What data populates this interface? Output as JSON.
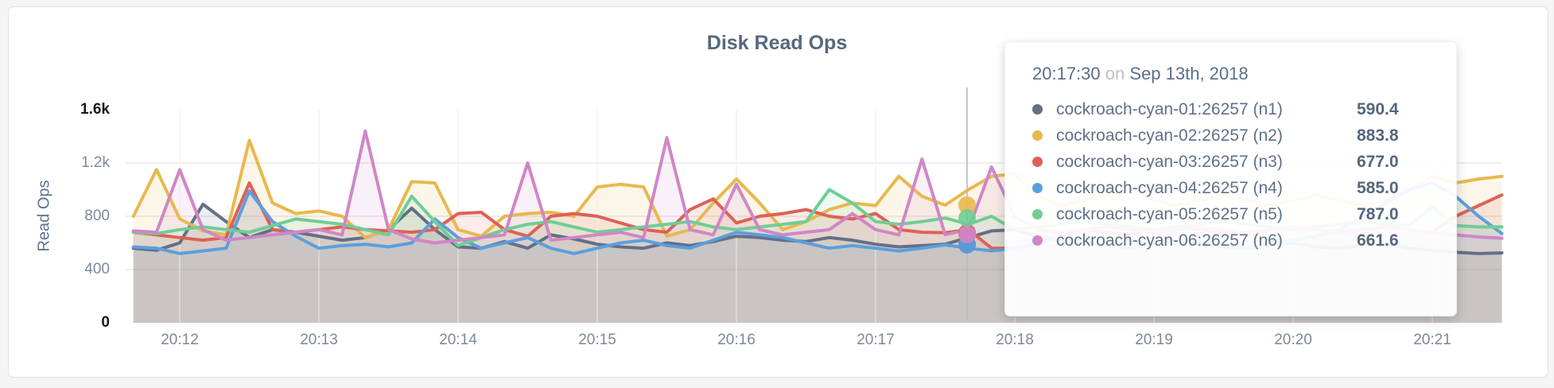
{
  "page": {
    "background": "#f4f4f5",
    "card_background": "#ffffff",
    "card_border": "#e2e2e3"
  },
  "chart_data": {
    "type": "line",
    "title": "Disk Read Ops",
    "ylabel": "Read Ops",
    "xlabel": "",
    "ylim": [
      0,
      1600
    ],
    "grid": true,
    "legend_position": "tooltip-only",
    "y_ticks": [
      {
        "value": 0,
        "label": "0",
        "emphasis": true,
        "gridline": false
      },
      {
        "value": 400,
        "label": "400",
        "emphasis": false,
        "gridline": true
      },
      {
        "value": 800,
        "label": "800",
        "emphasis": false,
        "gridline": true
      },
      {
        "value": 1200,
        "label": "1.2k",
        "emphasis": false,
        "gridline": true
      },
      {
        "value": 1600,
        "label": "1.6k",
        "emphasis": true,
        "gridline": false
      }
    ],
    "x_ticks": [
      "20:12",
      "20:13",
      "20:14",
      "20:15",
      "20:16",
      "20:17",
      "20:18",
      "20:19",
      "20:20",
      "20:21"
    ],
    "x": [
      "20:11:40",
      "20:11:50",
      "20:12:00",
      "20:12:10",
      "20:12:20",
      "20:12:30",
      "20:12:40",
      "20:12:50",
      "20:13:00",
      "20:13:10",
      "20:13:20",
      "20:13:30",
      "20:13:40",
      "20:13:50",
      "20:14:00",
      "20:14:10",
      "20:14:20",
      "20:14:30",
      "20:14:40",
      "20:14:50",
      "20:15:00",
      "20:15:10",
      "20:15:20",
      "20:15:30",
      "20:15:40",
      "20:15:50",
      "20:16:00",
      "20:16:10",
      "20:16:20",
      "20:16:30",
      "20:16:40",
      "20:16:50",
      "20:17:00",
      "20:17:10",
      "20:17:20",
      "20:17:30",
      "20:17:40",
      "20:17:50",
      "20:18:00",
      "20:18:10",
      "20:18:20",
      "20:18:30",
      "20:18:40",
      "20:18:50",
      "20:19:00",
      "20:19:10",
      "20:19:20",
      "20:19:30",
      "20:19:40",
      "20:19:50",
      "20:20:00",
      "20:20:10",
      "20:20:20",
      "20:20:30",
      "20:20:40",
      "20:20:50",
      "20:21:00",
      "20:21:10",
      "20:21:20",
      "20:21:30"
    ],
    "series": [
      {
        "name": "cockroach-cyan-01:26257 (n1)",
        "color": "#646f86",
        "values": [
          560,
          545,
          600,
          890,
          760,
          640,
          700,
          680,
          650,
          620,
          640,
          700,
          860,
          700,
          570,
          560,
          610,
          560,
          660,
          630,
          590,
          570,
          560,
          600,
          580,
          610,
          650,
          640,
          620,
          610,
          640,
          620,
          590,
          570,
          580,
          590.4,
          640,
          690,
          700,
          650,
          620,
          600,
          580,
          560,
          600,
          620,
          590,
          570,
          560,
          580,
          600,
          570,
          560,
          580,
          590,
          560,
          545,
          530,
          520,
          525
        ]
      },
      {
        "name": "cockroach-cyan-02:26257 (n2)",
        "color": "#e8b84e",
        "values": [
          800,
          1150,
          780,
          690,
          660,
          1370,
          900,
          820,
          840,
          800,
          640,
          700,
          1060,
          1050,
          700,
          650,
          800,
          820,
          830,
          800,
          1020,
          1040,
          1020,
          650,
          700,
          900,
          1080,
          900,
          700,
          760,
          850,
          900,
          880,
          1100,
          950,
          883.8,
          1000,
          1100,
          1120,
          950,
          880,
          920,
          960,
          1000,
          920,
          880,
          920,
          960,
          920,
          880,
          920,
          960,
          920,
          880,
          920,
          1000,
          1100,
          1050,
          1080,
          1100
        ]
      },
      {
        "name": "cockroach-cyan-03:26257 (n3)",
        "color": "#dd6156",
        "values": [
          680,
          660,
          640,
          620,
          640,
          1050,
          700,
          680,
          700,
          720,
          700,
          690,
          680,
          700,
          820,
          830,
          700,
          650,
          800,
          820,
          800,
          750,
          700,
          680,
          850,
          930,
          750,
          800,
          820,
          850,
          800,
          780,
          820,
          700,
          680,
          677,
          700,
          560,
          560,
          600,
          650,
          700,
          680,
          660,
          700,
          720,
          700,
          680,
          660,
          700,
          720,
          700,
          680,
          700,
          720,
          700,
          680,
          800,
          880,
          960
        ]
      },
      {
        "name": "cockroach-cyan-04:26257 (n4)",
        "color": "#5b9fdd",
        "values": [
          570,
          560,
          520,
          540,
          560,
          990,
          760,
          650,
          560,
          580,
          590,
          570,
          600,
          780,
          640,
          560,
          600,
          640,
          560,
          520,
          560,
          600,
          620,
          580,
          560,
          620,
          680,
          660,
          640,
          600,
          560,
          580,
          560,
          540,
          560,
          585,
          560,
          540,
          560,
          600,
          640,
          600,
          580,
          560,
          600,
          620,
          600,
          580,
          560,
          600,
          620,
          650,
          700,
          800,
          900,
          1000,
          1050,
          950,
          800,
          670
        ]
      },
      {
        "name": "cockroach-cyan-05:26257 (n5)",
        "color": "#6fcd96",
        "values": [
          680,
          670,
          700,
          720,
          700,
          680,
          730,
          780,
          760,
          740,
          700,
          660,
          950,
          760,
          580,
          640,
          700,
          740,
          760,
          720,
          680,
          700,
          720,
          740,
          760,
          720,
          700,
          720,
          740,
          760,
          1000,
          900,
          760,
          740,
          760,
          787,
          740,
          800,
          700,
          720,
          740,
          760,
          740,
          720,
          700,
          720,
          740,
          760,
          740,
          720,
          700,
          720,
          740,
          760,
          740,
          730,
          870,
          730,
          720,
          720
        ]
      },
      {
        "name": "cockroach-cyan-06:26257 (n6)",
        "color": "#d086c8",
        "values": [
          690,
          680,
          1150,
          700,
          620,
          640,
          660,
          680,
          700,
          660,
          1440,
          700,
          630,
          600,
          620,
          640,
          660,
          1200,
          620,
          640,
          660,
          680,
          640,
          1390,
          700,
          660,
          1040,
          700,
          660,
          680,
          700,
          820,
          700,
          660,
          1230,
          661.6,
          700,
          1170,
          800,
          700,
          680,
          700,
          720,
          700,
          680,
          700,
          720,
          700,
          680,
          700,
          720,
          700,
          680,
          700,
          720,
          700,
          680,
          660,
          645,
          635
        ]
      }
    ]
  },
  "tooltip": {
    "time": "20:17:30",
    "separator": "on",
    "date": "Sep 13th, 2018",
    "rows": [
      {
        "name": "cockroach-cyan-01:26257 (n1)",
        "value": "590.4",
        "color": "#646f86"
      },
      {
        "name": "cockroach-cyan-02:26257 (n2)",
        "value": "883.8",
        "color": "#e8b84e"
      },
      {
        "name": "cockroach-cyan-03:26257 (n3)",
        "value": "677.0",
        "color": "#dd6156"
      },
      {
        "name": "cockroach-cyan-04:26257 (n4)",
        "value": "585.0",
        "color": "#5b9fdd"
      },
      {
        "name": "cockroach-cyan-05:26257 (n5)",
        "value": "787.0",
        "color": "#6fcd96"
      },
      {
        "name": "cockroach-cyan-06:26257 (n6)",
        "value": "661.6",
        "color": "#d086c8"
      }
    ]
  }
}
